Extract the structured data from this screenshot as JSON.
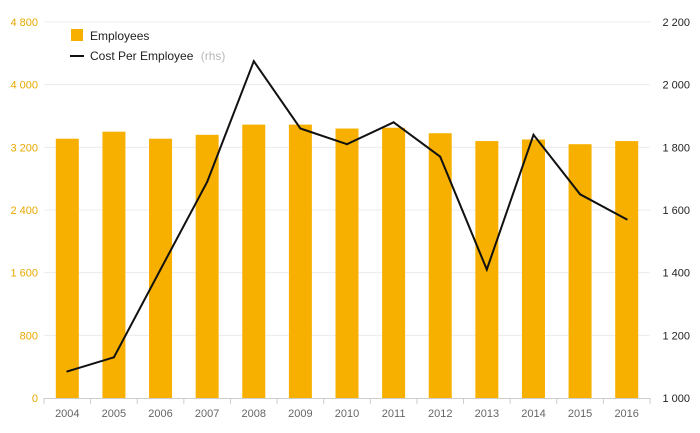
{
  "chart_data": {
    "type": "bar+line",
    "categories": [
      "2004",
      "2005",
      "2006",
      "2007",
      "2008",
      "2009",
      "2010",
      "2011",
      "2012",
      "2013",
      "2014",
      "2015",
      "2016"
    ],
    "series": [
      {
        "name": "Employees",
        "type": "bar",
        "axis": "left",
        "color": "#f8b000",
        "values": [
          3310,
          3400,
          3310,
          3360,
          3490,
          3490,
          3440,
          3450,
          3380,
          3280,
          3300,
          3240,
          3280
        ]
      },
      {
        "name": "Cost Per Employee",
        "name_suffix": "(rhs)",
        "type": "line",
        "axis": "right",
        "color": "#111111",
        "values": [
          1085,
          1130,
          1410,
          1690,
          2075,
          1860,
          1810,
          1880,
          1770,
          1410,
          1840,
          1650,
          1570
        ]
      }
    ],
    "y_left": {
      "ticks": [
        0,
        800,
        1600,
        2400,
        3200,
        4000,
        4800
      ],
      "tick_labels": [
        "0",
        "800",
        "1 600",
        "2 400",
        "3 200",
        "4 000",
        "4 800"
      ],
      "range": [
        0,
        4800
      ],
      "label_color": "#e8a800"
    },
    "y_right": {
      "ticks": [
        1000,
        1200,
        1400,
        1600,
        1800,
        2000,
        2200
      ],
      "tick_labels": [
        "1 000",
        "1 200",
        "1 400",
        "1 600",
        "1 800",
        "2 000",
        "2 200"
      ],
      "range": [
        1000,
        2200
      ]
    },
    "grid": true,
    "legend": {
      "position": "top-left"
    }
  }
}
